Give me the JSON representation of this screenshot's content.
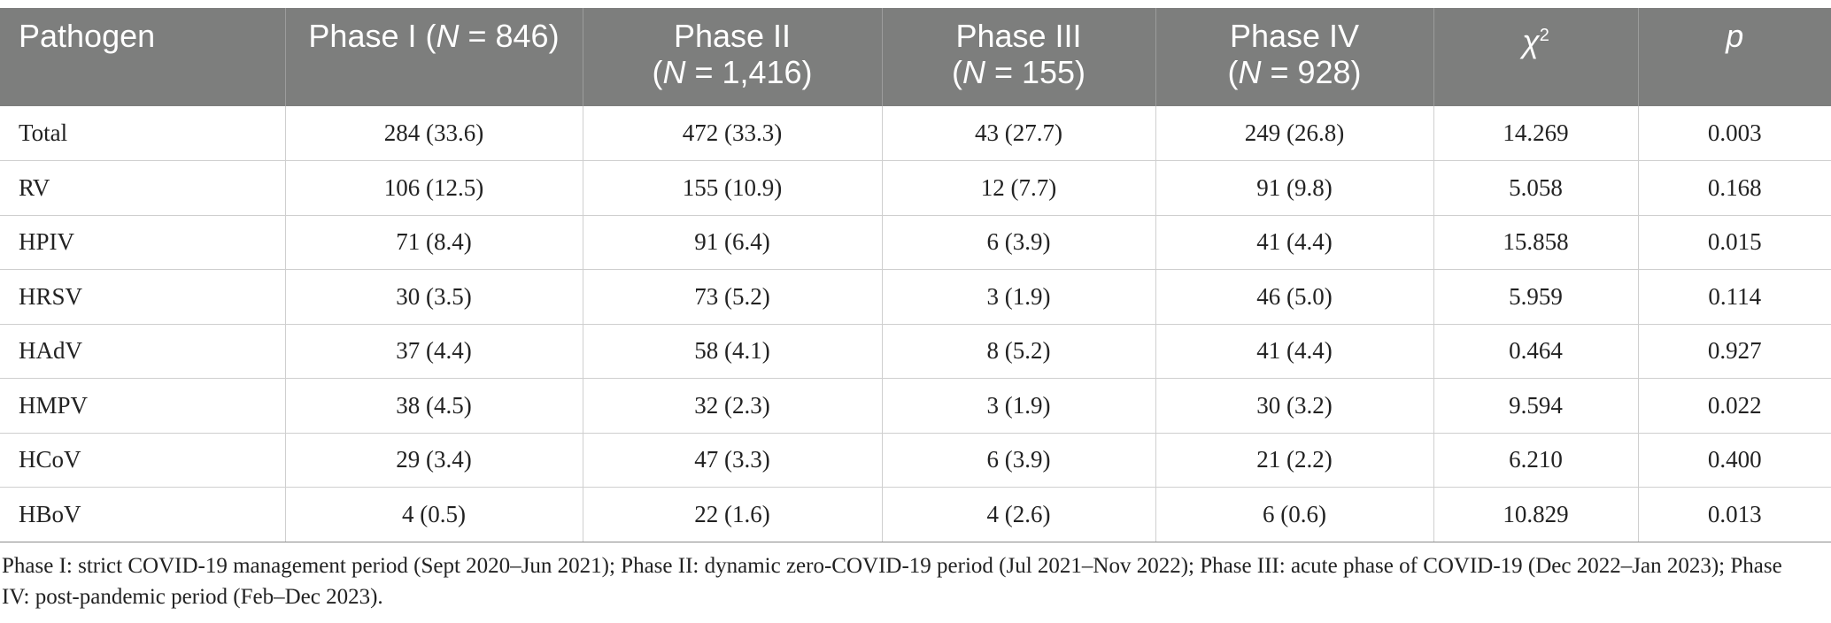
{
  "table": {
    "headers": {
      "pathogen": "Pathogen",
      "phase1": "Phase I (",
      "phase1_n_var": "N",
      "phase1_n_val": " = 846)",
      "phase2_line1": "Phase II",
      "phase2_n_var": "N",
      "phase2_n_val": " = 1,416)",
      "phase3_line1": "Phase III",
      "phase3_n_var": "N",
      "phase3_n_val": " = 155)",
      "phase4_line1": "Phase IV",
      "phase4_n_var": "N",
      "phase4_n_val": " = 928)",
      "chi_symbol": "χ",
      "chi_sup": "2",
      "p": "p"
    },
    "rows": [
      {
        "pathogen": "Total",
        "phase1": "284 (33.6)",
        "phase2": "472 (33.3)",
        "phase3": "43 (27.7)",
        "phase4": "249 (26.8)",
        "chi2": "14.269",
        "p": "0.003"
      },
      {
        "pathogen": "RV",
        "phase1": "106 (12.5)",
        "phase2": "155 (10.9)",
        "phase3": "12 (7.7)",
        "phase4": "91 (9.8)",
        "chi2": "5.058",
        "p": "0.168"
      },
      {
        "pathogen": "HPIV",
        "phase1": "71 (8.4)",
        "phase2": "91 (6.4)",
        "phase3": "6 (3.9)",
        "phase4": "41 (4.4)",
        "chi2": "15.858",
        "p": "0.015"
      },
      {
        "pathogen": "HRSV",
        "phase1": "30 (3.5)",
        "phase2": "73 (5.2)",
        "phase3": "3 (1.9)",
        "phase4": "46 (5.0)",
        "chi2": "5.959",
        "p": "0.114"
      },
      {
        "pathogen": "HAdV",
        "phase1": "37 (4.4)",
        "phase2": "58 (4.1)",
        "phase3": "8 (5.2)",
        "phase4": "41 (4.4)",
        "chi2": "0.464",
        "p": "0.927"
      },
      {
        "pathogen": "HMPV",
        "phase1": "38 (4.5)",
        "phase2": "32 (2.3)",
        "phase3": "3 (1.9)",
        "phase4": "30 (3.2)",
        "chi2": "9.594",
        "p": "0.022"
      },
      {
        "pathogen": "HCoV",
        "phase1": "29 (3.4)",
        "phase2": "47 (3.3)",
        "phase3": "6 (3.9)",
        "phase4": "21 (2.2)",
        "chi2": "6.210",
        "p": "0.400"
      },
      {
        "pathogen": "HBoV",
        "phase1": "4 (0.5)",
        "phase2": "22 (1.6)",
        "phase3": "4 (2.6)",
        "phase4": "6 (0.6)",
        "chi2": "10.829",
        "p": "0.013"
      }
    ]
  },
  "footnote": "Phase I: strict COVID-19 management period (Sept 2020–Jun 2021); Phase II: dynamic zero-COVID-19 period (Jul 2021–Nov 2022); Phase III: acute phase of COVID-19 (Dec 2022–Jan 2023); Phase IV: post-pandemic period (Feb–Dec 2023).",
  "colors": {
    "header_bg": "#7d7e7d",
    "header_text": "#ffffff",
    "border": "#cfcfcf"
  }
}
